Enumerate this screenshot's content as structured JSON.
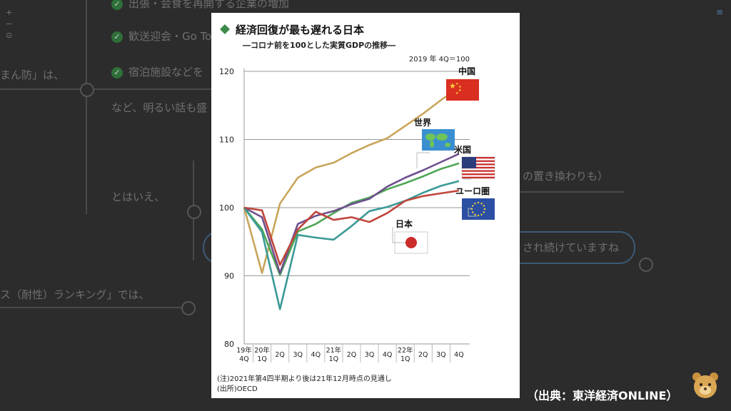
{
  "background": {
    "items": [
      {
        "text": "出張・会食を再開する企業の増加"
      },
      {
        "text": "歓送迎会・Go To"
      },
      {
        "text": "宿泊施設などを"
      },
      {
        "text": "など、明るい話も盛"
      },
      {
        "text": "まん防」は、"
      },
      {
        "text": "とはいえ、"
      },
      {
        "text": "の置き換わりも）"
      },
      {
        "text": "され続けていますね"
      },
      {
        "text": "ス（耐性）ランキング」では、"
      }
    ],
    "zoom_plus": "+",
    "zoom_minus": "−",
    "zoom_reset": "⊙"
  },
  "source_caption": "（出典：東洋経済ONLINE）",
  "chart_data": {
    "type": "line",
    "title": "経済回復が最も遅れる日本",
    "subtitle": "―コロナ前を100とした実質GDPの推移―",
    "base_note": "2019 年 4Q＝100",
    "ylim": [
      80,
      120
    ],
    "yticks": [
      "80",
      "90",
      "100",
      "110",
      "120"
    ],
    "categories": [
      [
        "19年",
        "4Q"
      ],
      [
        "20年",
        "1Q"
      ],
      [
        "2Q"
      ],
      [
        "3Q"
      ],
      [
        "4Q"
      ],
      [
        "21年",
        "1Q"
      ],
      [
        "2Q"
      ],
      [
        "3Q"
      ],
      [
        "4Q"
      ],
      [
        "22年",
        "1Q"
      ],
      [
        "2Q"
      ],
      [
        "3Q"
      ],
      [
        "4Q"
      ]
    ],
    "series": [
      {
        "name": "中国",
        "color": "#c8a55a",
        "flag": "china-flag",
        "values": [
          100,
          90.4,
          100.6,
          104.4,
          105.9,
          106.6,
          108.0,
          109.2,
          110.2,
          112.0,
          113.8,
          115.8,
          117.6
        ]
      },
      {
        "name": "世界",
        "color": "#4ea655",
        "flag": "world-map-flag",
        "values": [
          100,
          96.8,
          90.1,
          96.5,
          97.6,
          99.2,
          100.7,
          101.5,
          102.7,
          103.6,
          104.6,
          105.7,
          106.5
        ]
      },
      {
        "name": "米国",
        "color": "#6d4f8e",
        "flag": "us-flag",
        "values": [
          100,
          98.6,
          90.4,
          97.6,
          98.8,
          99.5,
          100.5,
          101.3,
          103.1,
          104.4,
          105.5,
          106.7,
          107.9
        ]
      },
      {
        "name": "ユーロ圏",
        "color": "#3a9a96",
        "flag": "eu-flag",
        "values": [
          100,
          96.4,
          85.1,
          96.0,
          95.6,
          95.3,
          97.3,
          99.5,
          100.1,
          101.0,
          102.2,
          103.2,
          103.9
        ]
      },
      {
        "name": "日本",
        "color": "#c0453c",
        "flag": "japan-flag",
        "values": [
          100,
          99.6,
          91.6,
          96.8,
          99.4,
          98.2,
          98.6,
          97.9,
          99.2,
          101.0,
          101.7,
          102.1,
          102.5
        ]
      }
    ],
    "notes": [
      "(注)2021年第4四半期より後は21年12月時点の見通し",
      "(出所)OECD"
    ]
  }
}
